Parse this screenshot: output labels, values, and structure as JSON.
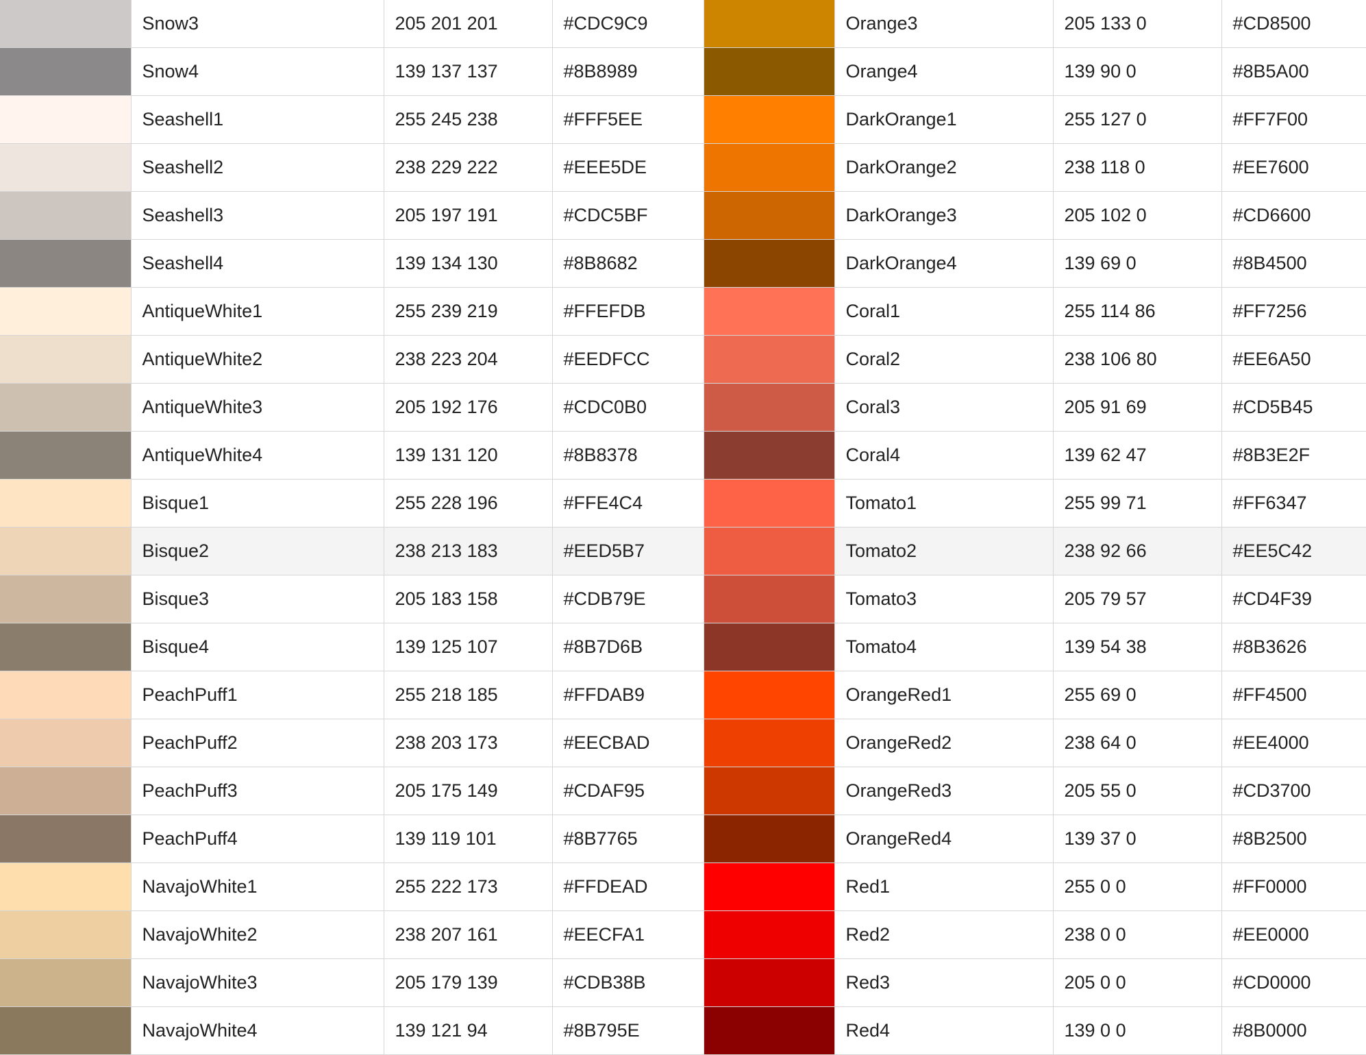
{
  "rows": [
    {
      "left": {
        "name": "Snow3",
        "rgb": "205 201 201",
        "hex": "#CDC9C9"
      },
      "right": {
        "name": "Orange3",
        "rgb": "205 133 0",
        "hex": "#CD8500"
      }
    },
    {
      "left": {
        "name": "Snow4",
        "rgb": "139 137 137",
        "hex": "#8B8989"
      },
      "right": {
        "name": "Orange4",
        "rgb": "139 90 0",
        "hex": "#8B5A00"
      }
    },
    {
      "left": {
        "name": "Seashell1",
        "rgb": "255 245 238",
        "hex": "#FFF5EE"
      },
      "right": {
        "name": "DarkOrange1",
        "rgb": "255 127 0",
        "hex": "#FF7F00"
      }
    },
    {
      "left": {
        "name": "Seashell2",
        "rgb": "238 229 222",
        "hex": "#EEE5DE"
      },
      "right": {
        "name": "DarkOrange2",
        "rgb": "238 118 0",
        "hex": "#EE7600"
      }
    },
    {
      "left": {
        "name": "Seashell3",
        "rgb": "205 197 191",
        "hex": "#CDC5BF"
      },
      "right": {
        "name": "DarkOrange3",
        "rgb": "205 102 0",
        "hex": "#CD6600"
      }
    },
    {
      "left": {
        "name": "Seashell4",
        "rgb": "139 134 130",
        "hex": "#8B8682"
      },
      "right": {
        "name": "DarkOrange4",
        "rgb": "139 69 0",
        "hex": "#8B4500"
      }
    },
    {
      "left": {
        "name": "AntiqueWhite1",
        "rgb": "255 239 219",
        "hex": "#FFEFDB"
      },
      "right": {
        "name": "Coral1",
        "rgb": "255 114 86",
        "hex": "#FF7256"
      }
    },
    {
      "left": {
        "name": "AntiqueWhite2",
        "rgb": "238 223 204",
        "hex": "#EEDFCC"
      },
      "right": {
        "name": "Coral2",
        "rgb": "238 106 80",
        "hex": "#EE6A50"
      }
    },
    {
      "left": {
        "name": "AntiqueWhite3",
        "rgb": "205 192 176",
        "hex": "#CDC0B0"
      },
      "right": {
        "name": "Coral3",
        "rgb": "205 91 69",
        "hex": "#CD5B45"
      }
    },
    {
      "left": {
        "name": "AntiqueWhite4",
        "rgb": "139 131 120",
        "hex": "#8B8378"
      },
      "right": {
        "name": "Coral4",
        "rgb": "139 62 47",
        "hex": "#8B3E2F"
      }
    },
    {
      "left": {
        "name": "Bisque1",
        "rgb": "255 228 196",
        "hex": "#FFE4C4"
      },
      "right": {
        "name": "Tomato1",
        "rgb": "255 99 71",
        "hex": "#FF6347"
      }
    },
    {
      "left": {
        "name": "Bisque2",
        "rgb": "238 213 183",
        "hex": "#EED5B7"
      },
      "right": {
        "name": "Tomato2",
        "rgb": "238 92 66",
        "hex": "#EE5C42"
      },
      "highlighted": true
    },
    {
      "left": {
        "name": "Bisque3",
        "rgb": "205 183 158",
        "hex": "#CDB79E"
      },
      "right": {
        "name": "Tomato3",
        "rgb": "205 79 57",
        "hex": "#CD4F39"
      }
    },
    {
      "left": {
        "name": "Bisque4",
        "rgb": "139 125 107",
        "hex": "#8B7D6B"
      },
      "right": {
        "name": "Tomato4",
        "rgb": "139 54 38",
        "hex": "#8B3626"
      }
    },
    {
      "left": {
        "name": "PeachPuff1",
        "rgb": "255 218 185",
        "hex": "#FFDAB9"
      },
      "right": {
        "name": "OrangeRed1",
        "rgb": "255 69 0",
        "hex": "#FF4500"
      }
    },
    {
      "left": {
        "name": "PeachPuff2",
        "rgb": "238 203 173",
        "hex": "#EECBAD"
      },
      "right": {
        "name": "OrangeRed2",
        "rgb": "238 64 0",
        "hex": "#EE4000"
      }
    },
    {
      "left": {
        "name": "PeachPuff3",
        "rgb": "205 175 149",
        "hex": "#CDAF95"
      },
      "right": {
        "name": "OrangeRed3",
        "rgb": "205 55 0",
        "hex": "#CD3700"
      }
    },
    {
      "left": {
        "name": "PeachPuff4",
        "rgb": "139 119 101",
        "hex": "#8B7765"
      },
      "right": {
        "name": "OrangeRed4",
        "rgb": "139 37 0",
        "hex": "#8B2500"
      }
    },
    {
      "left": {
        "name": "NavajoWhite1",
        "rgb": "255 222 173",
        "hex": "#FFDEAD"
      },
      "right": {
        "name": "Red1",
        "rgb": "255 0 0",
        "hex": "#FF0000"
      }
    },
    {
      "left": {
        "name": "NavajoWhite2",
        "rgb": "238 207 161",
        "hex": "#EECFA1"
      },
      "right": {
        "name": "Red2",
        "rgb": "238 0 0",
        "hex": "#EE0000"
      }
    },
    {
      "left": {
        "name": "NavajoWhite3",
        "rgb": "205 179 139",
        "hex": "#CDB38B"
      },
      "right": {
        "name": "Red3",
        "rgb": "205 0 0",
        "hex": "#CD0000"
      }
    },
    {
      "left": {
        "name": "NavajoWhite4",
        "rgb": "139 121 94",
        "hex": "#8B795E"
      },
      "right": {
        "name": "Red4",
        "rgb": "139 0 0",
        "hex": "#8B0000"
      }
    }
  ]
}
